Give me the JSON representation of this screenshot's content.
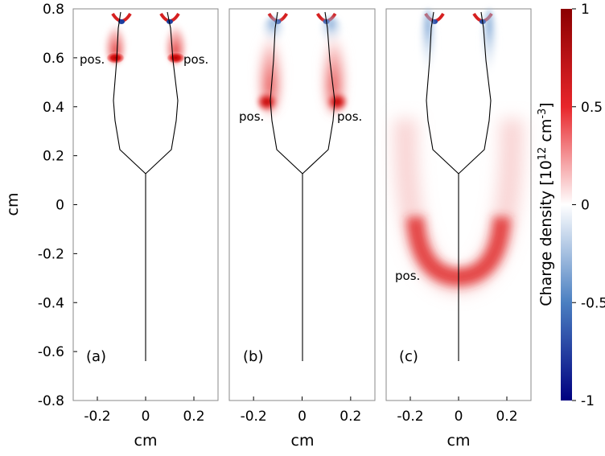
{
  "chart_data": {
    "type": "heatmap",
    "title": "",
    "ylabel": "cm",
    "ylim": [
      -0.8,
      0.8
    ],
    "xlim": [
      -0.3,
      0.3
    ],
    "y_ticks": [
      "0.8",
      "0.6",
      "0.4",
      "0.2",
      "0",
      "-0.2",
      "-0.4",
      "-0.6",
      "-0.8"
    ],
    "y_tick_values": [
      0.8,
      0.6,
      0.4,
      0.2,
      0,
      -0.2,
      -0.4,
      -0.6,
      -0.8
    ],
    "x_tick_values": [
      -0.2,
      0,
      0.2
    ],
    "colorbar": {
      "label_prefix": "Charge density [10",
      "label_sup1": "12",
      "label_mid": " cm",
      "label_sup2": "-3",
      "label_suffix": "]",
      "range": [
        -1,
        1
      ],
      "ticks": [
        "1",
        "0.5",
        "0",
        "-0.5",
        "-1"
      ],
      "tick_values": [
        1,
        0.5,
        0,
        -0.5,
        -1
      ],
      "colors": {
        "max": "#8b0000",
        "high": "#e8262b",
        "mid": "#ffffff",
        "low": "#4a7fc1",
        "min": "#000080"
      }
    },
    "panels": [
      {
        "label": "(a)",
        "xlabel": "cm",
        "x_ticks": [
          "-0.2",
          "0",
          "0.2"
        ],
        "annotations": [
          {
            "text": "pos.",
            "x": -0.22,
            "y": 0.595
          },
          {
            "text": "pos.",
            "x": 0.19,
            "y": 0.595
          }
        ],
        "positive_heads": [
          {
            "x": -0.125,
            "y": 0.6,
            "rx": 0.04,
            "ry": 0.025,
            "density": 1.0
          },
          {
            "x": 0.125,
            "y": 0.6,
            "rx": 0.04,
            "ry": 0.025,
            "density": 1.0
          }
        ]
      },
      {
        "label": "(b)",
        "xlabel": "cm",
        "x_ticks": [
          "-0.2",
          "0",
          "0.2"
        ],
        "annotations": [
          {
            "text": "pos.",
            "x": -0.2,
            "y": 0.36
          },
          {
            "text": "pos.",
            "x": 0.2,
            "y": 0.36
          }
        ],
        "positive_heads": [
          {
            "x": -0.145,
            "y": 0.42,
            "rx": 0.045,
            "ry": 0.04,
            "density": 0.9
          },
          {
            "x": 0.145,
            "y": 0.42,
            "rx": 0.045,
            "ry": 0.04,
            "density": 0.9
          }
        ]
      },
      {
        "label": "(c)",
        "xlabel": "cm",
        "x_ticks": [
          "-0.2",
          "0",
          "0.2"
        ],
        "annotations": [
          {
            "text": "pos.",
            "x": -0.19,
            "y": -0.295
          }
        ],
        "positive_heads": [
          {
            "x": 0.0,
            "y": -0.27,
            "rx": 0.2,
            "ry": 0.04,
            "density": 0.85
          }
        ]
      }
    ]
  }
}
